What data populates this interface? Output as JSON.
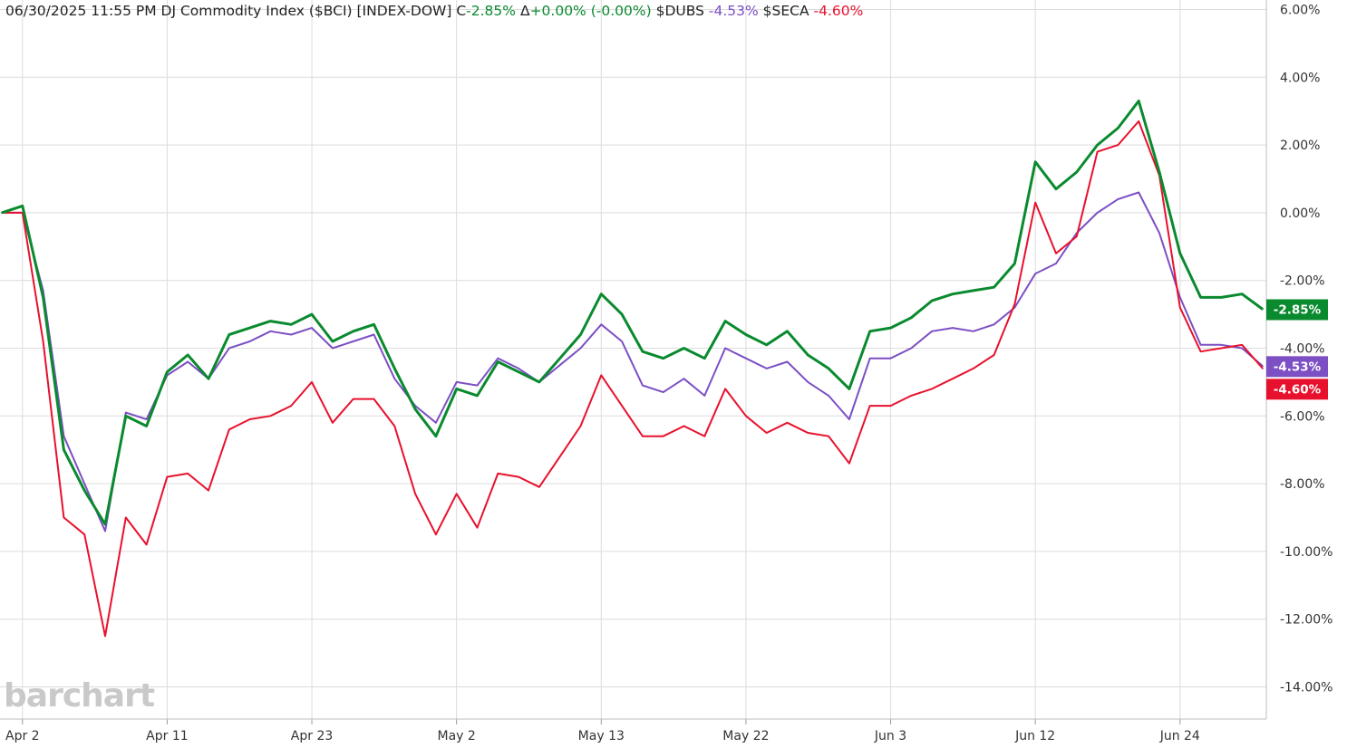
{
  "header": {
    "datetime": "06/30/2025  11:55 PM",
    "title": "DJ Commodity Index ($BCI) [INDEX-DOW]",
    "close_label": "C",
    "close_value": "-2.85%",
    "change_label": "Δ",
    "change_value": "+0.00% (-0.00%)",
    "compare1_symbol": "$DUBS",
    "compare1_value": "-4.53%",
    "compare2_symbol": "$SECA",
    "compare2_value": "-4.60%"
  },
  "watermark": "barchart",
  "colors": {
    "bci": "#0a8a2e",
    "dubs": "#7c4fc4",
    "seca": "#e8112d",
    "grid": "#dcdcdc",
    "up_text": "#0a8a2e",
    "dubs_text": "#7c4fc4",
    "seca_text": "#e8112d"
  },
  "chart_data": {
    "type": "line",
    "x": [
      "Apr 1",
      "Apr 2",
      "Apr 3",
      "Apr 4",
      "Apr 7",
      "Apr 8",
      "Apr 9",
      "Apr 10",
      "Apr 11",
      "Apr 14",
      "Apr 15",
      "Apr 16",
      "Apr 17",
      "Apr 21",
      "Apr 22",
      "Apr 23",
      "Apr 24",
      "Apr 25",
      "Apr 28",
      "Apr 29",
      "Apr 30",
      "May 1",
      "May 2",
      "May 5",
      "May 6",
      "May 7",
      "May 8",
      "May 9",
      "May 12",
      "May 13",
      "May 14",
      "May 15",
      "May 16",
      "May 19",
      "May 20",
      "May 21",
      "May 22",
      "May 23",
      "May 27",
      "May 28",
      "May 29",
      "May 30",
      "Jun 2",
      "Jun 3",
      "Jun 4",
      "Jun 5",
      "Jun 6",
      "Jun 9",
      "Jun 10",
      "Jun 11",
      "Jun 12",
      "Jun 13",
      "Jun 16",
      "Jun 17",
      "Jun 18",
      "Jun 20",
      "Jun 23",
      "Jun 24",
      "Jun 25",
      "Jun 26",
      "Jun 27",
      "Jun 30"
    ],
    "x_tick_labels": [
      "Apr 2",
      "Apr 11",
      "Apr 23",
      "May 2",
      "May 13",
      "May 22",
      "Jun 3",
      "Jun 12",
      "Jun 24"
    ],
    "y_tick_labels": [
      "6.00%",
      "4.00%",
      "2.00%",
      "0.00%",
      "-2.00%",
      "-4.00%",
      "-6.00%",
      "-8.00%",
      "-10.00%",
      "-12.00%",
      "-14.00%"
    ],
    "ylim": [
      -14.0,
      6.0
    ],
    "ylabel": "",
    "xlabel": "",
    "title": "",
    "grid": true,
    "series": [
      {
        "name": "DJ Commodity Index ($BCI)",
        "color": "#0a8a2e",
        "last_label": "-2.85%",
        "values": [
          0.0,
          0.2,
          -2.5,
          -7.0,
          -8.2,
          -9.2,
          -6.0,
          -6.3,
          -4.7,
          -4.2,
          -4.9,
          -3.6,
          -3.4,
          -3.2,
          -3.3,
          -3.0,
          -3.8,
          -3.5,
          -3.3,
          -4.6,
          -5.8,
          -6.6,
          -5.2,
          -5.4,
          -4.4,
          -4.7,
          -5.0,
          -4.3,
          -3.6,
          -2.4,
          -3.0,
          -4.1,
          -4.3,
          -4.0,
          -4.3,
          -3.2,
          -3.6,
          -3.9,
          -3.5,
          -4.2,
          -4.6,
          -5.2,
          -3.5,
          -3.4,
          -3.1,
          -2.6,
          -2.4,
          -2.3,
          -2.2,
          -1.5,
          1.5,
          0.7,
          1.2,
          2.0,
          2.5,
          3.3,
          1.2,
          -1.2,
          -2.5,
          -2.5,
          -2.4,
          -2.85
        ]
      },
      {
        "name": "$DUBS",
        "color": "#7c4fc4",
        "last_label": "-4.53%",
        "values": [
          0.0,
          0.0,
          -2.3,
          -6.6,
          -8.0,
          -9.4,
          -5.9,
          -6.1,
          -4.8,
          -4.4,
          -4.9,
          -4.0,
          -3.8,
          -3.5,
          -3.6,
          -3.4,
          -4.0,
          -3.8,
          -3.6,
          -4.9,
          -5.7,
          -6.2,
          -5.0,
          -5.1,
          -4.3,
          -4.6,
          -5.0,
          -4.5,
          -4.0,
          -3.3,
          -3.8,
          -5.1,
          -5.3,
          -4.9,
          -5.4,
          -4.0,
          -4.3,
          -4.6,
          -4.4,
          -5.0,
          -5.4,
          -6.1,
          -4.3,
          -4.3,
          -4.0,
          -3.5,
          -3.4,
          -3.5,
          -3.3,
          -2.8,
          -1.8,
          -1.5,
          -0.6,
          0.0,
          0.4,
          0.6,
          -0.6,
          -2.5,
          -3.9,
          -3.9,
          -4.0,
          -4.53
        ]
      },
      {
        "name": "$SECA",
        "color": "#e8112d",
        "last_label": "-4.60%",
        "values": [
          0.0,
          0.0,
          -3.8,
          -9.0,
          -9.5,
          -12.5,
          -9.0,
          -9.8,
          -7.8,
          -7.7,
          -8.2,
          -6.4,
          -6.1,
          -6.0,
          -5.7,
          -5.0,
          -6.2,
          -5.5,
          -5.5,
          -6.3,
          -8.3,
          -9.5,
          -8.3,
          -9.3,
          -7.7,
          -7.8,
          -8.1,
          -7.2,
          -6.3,
          -4.8,
          -5.7,
          -6.6,
          -6.6,
          -6.3,
          -6.6,
          -5.2,
          -6.0,
          -6.5,
          -6.2,
          -6.5,
          -6.6,
          -7.4,
          -5.7,
          -5.7,
          -5.4,
          -5.2,
          -4.9,
          -4.6,
          -4.2,
          -2.7,
          0.3,
          -1.2,
          -0.7,
          1.8,
          2.0,
          2.7,
          1.1,
          -2.8,
          -4.1,
          -4.0,
          -3.9,
          -4.6
        ]
      }
    ]
  }
}
